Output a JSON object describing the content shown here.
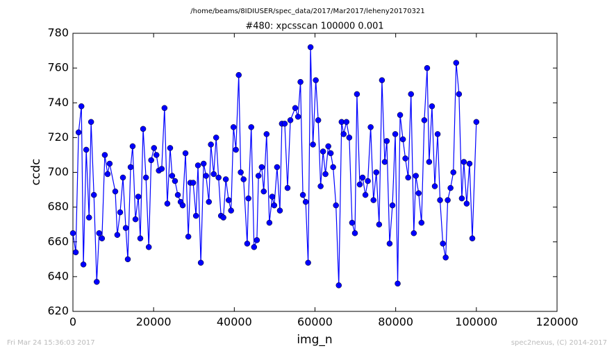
{
  "chart_data": {
    "type": "line",
    "suptitle": "/home/beams/8IDIUSER/spec_data/2017/Mar2017/leheny20170321",
    "title": "#480: xpcsscan 100000 0.001",
    "x_label": "img_n",
    "y_label": "ccdc",
    "footer_left": "Fri Mar 24 15:36:03 2017",
    "footer_right": "spec2nexus, (C) 2014-2017",
    "xlim": [
      0,
      120000
    ],
    "xticks": [
      0,
      20000,
      40000,
      60000,
      80000,
      100000,
      120000
    ],
    "ylim": [
      620,
      780
    ],
    "yticks": [
      620,
      640,
      660,
      680,
      700,
      720,
      740,
      760,
      780
    ],
    "series": [
      {
        "color": "#0000ff",
        "x": [
          0,
          700,
          1400,
          2100,
          2600,
          3300,
          4000,
          4500,
          5200,
          5900,
          6500,
          7200,
          7900,
          8600,
          9100,
          10500,
          11000,
          11700,
          12400,
          13100,
          13600,
          14300,
          14800,
          15500,
          16200,
          16700,
          17400,
          18100,
          18800,
          19400,
          20100,
          20700,
          21300,
          22000,
          22700,
          23400,
          24100,
          24600,
          25300,
          26000,
          26700,
          27200,
          27900,
          28600,
          29100,
          29800,
          30500,
          31000,
          31700,
          32400,
          33000,
          33700,
          34200,
          34900,
          35500,
          36100,
          36700,
          37300,
          37900,
          38600,
          39200,
          39800,
          40400,
          41100,
          41600,
          42300,
          43200,
          43500,
          44200,
          44900,
          45600,
          46000,
          46800,
          47300,
          48000,
          48700,
          49400,
          49900,
          50600,
          51300,
          51800,
          52500,
          53200,
          53900,
          55100,
          55800,
          56400,
          57000,
          57700,
          58300,
          58900,
          59500,
          60200,
          60800,
          61400,
          62000,
          62600,
          63300,
          63900,
          64500,
          65200,
          65900,
          66600,
          67100,
          67800,
          68500,
          69200,
          69900,
          70400,
          71100,
          71800,
          72500,
          73100,
          73800,
          74500,
          75200,
          75900,
          76600,
          77300,
          77800,
          78500,
          79200,
          79900,
          80500,
          81100,
          81800,
          82400,
          83100,
          83800,
          84500,
          85000,
          85700,
          86400,
          87100,
          87800,
          88300,
          89000,
          89700,
          90400,
          91000,
          91700,
          92400,
          92900,
          93600,
          94300,
          95000,
          95700,
          96400,
          96900,
          97600,
          98300,
          99000,
          100000
        ],
        "values": [
          665,
          654,
          723,
          738,
          647,
          713,
          674,
          729,
          687,
          637,
          665,
          662,
          710,
          699,
          705,
          689,
          664,
          677,
          697,
          668,
          650,
          703,
          715,
          673,
          686,
          662,
          725,
          697,
          657,
          707,
          714,
          710,
          701,
          702,
          737,
          682,
          714,
          698,
          695,
          687,
          683,
          681,
          711,
          663,
          694,
          694,
          675,
          704,
          648,
          705,
          698,
          683,
          716,
          699,
          720,
          697,
          675,
          674,
          696,
          684,
          678,
          726,
          713,
          756,
          700,
          696,
          659,
          685,
          726,
          657,
          661,
          698,
          703,
          689,
          722,
          671,
          686,
          681,
          703,
          678,
          728,
          728,
          691,
          730,
          737,
          732,
          752,
          687,
          683,
          648,
          772,
          716,
          753,
          730,
          692,
          712,
          699,
          715,
          711,
          703,
          681,
          635,
          729,
          722,
          729,
          720,
          671,
          665,
          745,
          693,
          697,
          687,
          695,
          726,
          684,
          700,
          670,
          753,
          706,
          718,
          659,
          681,
          722,
          636,
          733,
          719,
          708,
          697,
          745,
          665,
          698,
          688,
          671,
          730,
          760,
          706,
          738,
          692,
          722,
          684,
          659,
          651,
          684,
          691,
          700,
          763,
          745,
          685,
          706,
          682,
          705,
          662,
          729
        ]
      }
    ]
  }
}
